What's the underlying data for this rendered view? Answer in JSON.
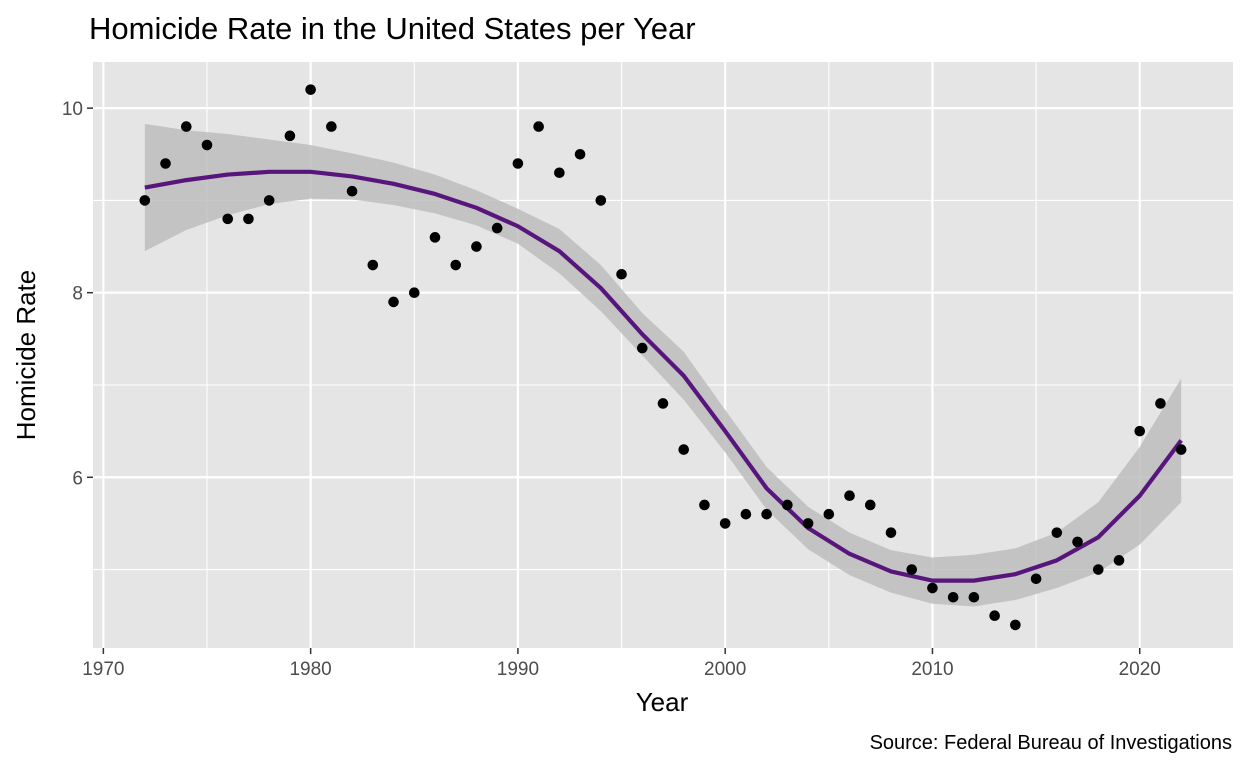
{
  "chart_data": {
    "type": "scatter",
    "title": "Homicide Rate in the United States per Year",
    "xlabel": "Year",
    "ylabel": "Homicide Rate",
    "caption": "Source: Federal Bureau of Investigations",
    "xlim": [
      1969.5,
      2024.5
    ],
    "ylim": [
      4.15,
      10.5
    ],
    "x_ticks": [
      1970,
      1980,
      1990,
      2000,
      2010,
      2020
    ],
    "x_tick_labels": [
      "1970",
      "1980",
      "1990",
      "2000",
      "2010",
      "2020"
    ],
    "x_minor_ticks": [
      1975,
      1985,
      1995,
      2005,
      2015
    ],
    "y_ticks": [
      6,
      8,
      10
    ],
    "y_tick_labels": [
      "6",
      "8",
      "10"
    ],
    "y_minor_ticks": [
      5,
      7,
      9
    ],
    "grid": true,
    "legend": "none",
    "colors": {
      "panel_background": "#e5e5e5",
      "grid": "#ffffff",
      "points": "#000000",
      "smooth_line": "#58167d",
      "ribbon": "#bdbdbd"
    },
    "series": [
      {
        "type": "points",
        "x": [
          1972,
          1973,
          1974,
          1975,
          1976,
          1977,
          1978,
          1979,
          1980,
          1981,
          1982,
          1983,
          1984,
          1985,
          1986,
          1987,
          1988,
          1989,
          1990,
          1991,
          1992,
          1993,
          1994,
          1995,
          1996,
          1997,
          1998,
          1999,
          2000,
          2001,
          2002,
          2003,
          2004,
          2005,
          2006,
          2007,
          2008,
          2009,
          2010,
          2011,
          2012,
          2013,
          2014,
          2015,
          2016,
          2017,
          2018,
          2019,
          2020,
          2021,
          2022
        ],
        "y": [
          9.0,
          9.4,
          9.8,
          9.6,
          8.8,
          8.8,
          9.0,
          9.7,
          10.2,
          9.8,
          9.1,
          8.3,
          7.9,
          8.0,
          8.6,
          8.3,
          8.5,
          8.7,
          9.4,
          9.8,
          9.3,
          9.5,
          9.0,
          8.2,
          7.4,
          6.8,
          6.3,
          5.7,
          5.5,
          5.6,
          5.6,
          5.7,
          5.5,
          5.6,
          5.8,
          5.7,
          5.4,
          5.0,
          4.8,
          4.7,
          4.7,
          4.5,
          4.4,
          4.9,
          5.4,
          5.3,
          5.0,
          5.1,
          6.5,
          6.8,
          6.3
        ]
      },
      {
        "type": "smooth",
        "x": [
          1972,
          1974,
          1976,
          1978,
          1980,
          1982,
          1984,
          1986,
          1988,
          1990,
          1992,
          1994,
          1996,
          1998,
          2000,
          2002,
          2004,
          2006,
          2008,
          2010,
          2012,
          2014,
          2016,
          2018,
          2020,
          2022
        ],
        "y": [
          9.14,
          9.22,
          9.28,
          9.31,
          9.31,
          9.26,
          9.18,
          9.07,
          8.92,
          8.72,
          8.45,
          8.05,
          7.55,
          7.1,
          6.5,
          5.88,
          5.45,
          5.17,
          4.98,
          4.88,
          4.88,
          4.95,
          5.1,
          5.35,
          5.8,
          6.4
        ],
        "ymin": [
          8.45,
          8.68,
          8.84,
          8.96,
          9.02,
          9.01,
          8.95,
          8.86,
          8.73,
          8.53,
          8.21,
          7.8,
          7.32,
          6.84,
          6.27,
          5.65,
          5.22,
          4.94,
          4.75,
          4.63,
          4.6,
          4.67,
          4.8,
          4.97,
          5.27,
          5.73
        ],
        "ymax": [
          9.83,
          9.76,
          9.72,
          9.66,
          9.6,
          9.51,
          9.41,
          9.28,
          9.11,
          8.91,
          8.69,
          8.3,
          7.78,
          7.36,
          6.73,
          6.11,
          5.68,
          5.4,
          5.21,
          5.13,
          5.16,
          5.23,
          5.4,
          5.73,
          6.33,
          7.07
        ]
      }
    ]
  }
}
